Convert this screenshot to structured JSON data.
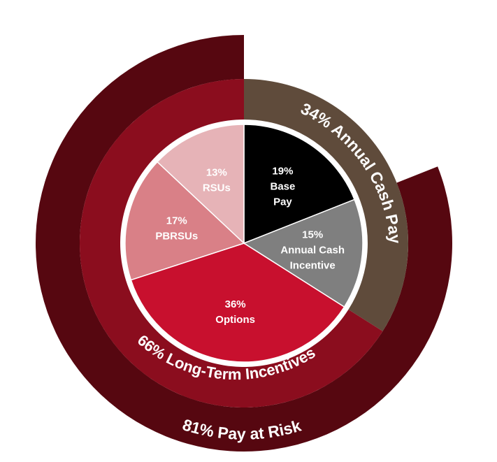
{
  "chart_data": {
    "type": "pie",
    "title": "",
    "slices": [
      {
        "pct": "19%",
        "lines": [
          "Base",
          "Pay"
        ],
        "value": 19,
        "color": "#000000"
      },
      {
        "pct": "15%",
        "lines": [
          "Annual Cash",
          "Incentive"
        ],
        "value": 15,
        "color": "#7f7f7f"
      },
      {
        "pct": "36%",
        "lines": [
          "Options"
        ],
        "value": 36,
        "color": "#c8102e"
      },
      {
        "pct": "17%",
        "lines": [
          "PBRSUs"
        ],
        "value": 17,
        "color": "#d98087"
      },
      {
        "pct": "13%",
        "lines": [
          "RSUs"
        ],
        "value": 13,
        "color": "#e6b3b7"
      }
    ],
    "groups": [
      {
        "label": "34% Annual Cash Pay",
        "value": 34,
        "color": "#5f4b3b"
      },
      {
        "label": "66% Long-Term Incentives",
        "value": 66,
        "color": "#8b0d1e"
      }
    ],
    "outer_group": {
      "label": "81% Pay at Risk",
      "value": 81,
      "color": "#560710"
    }
  }
}
